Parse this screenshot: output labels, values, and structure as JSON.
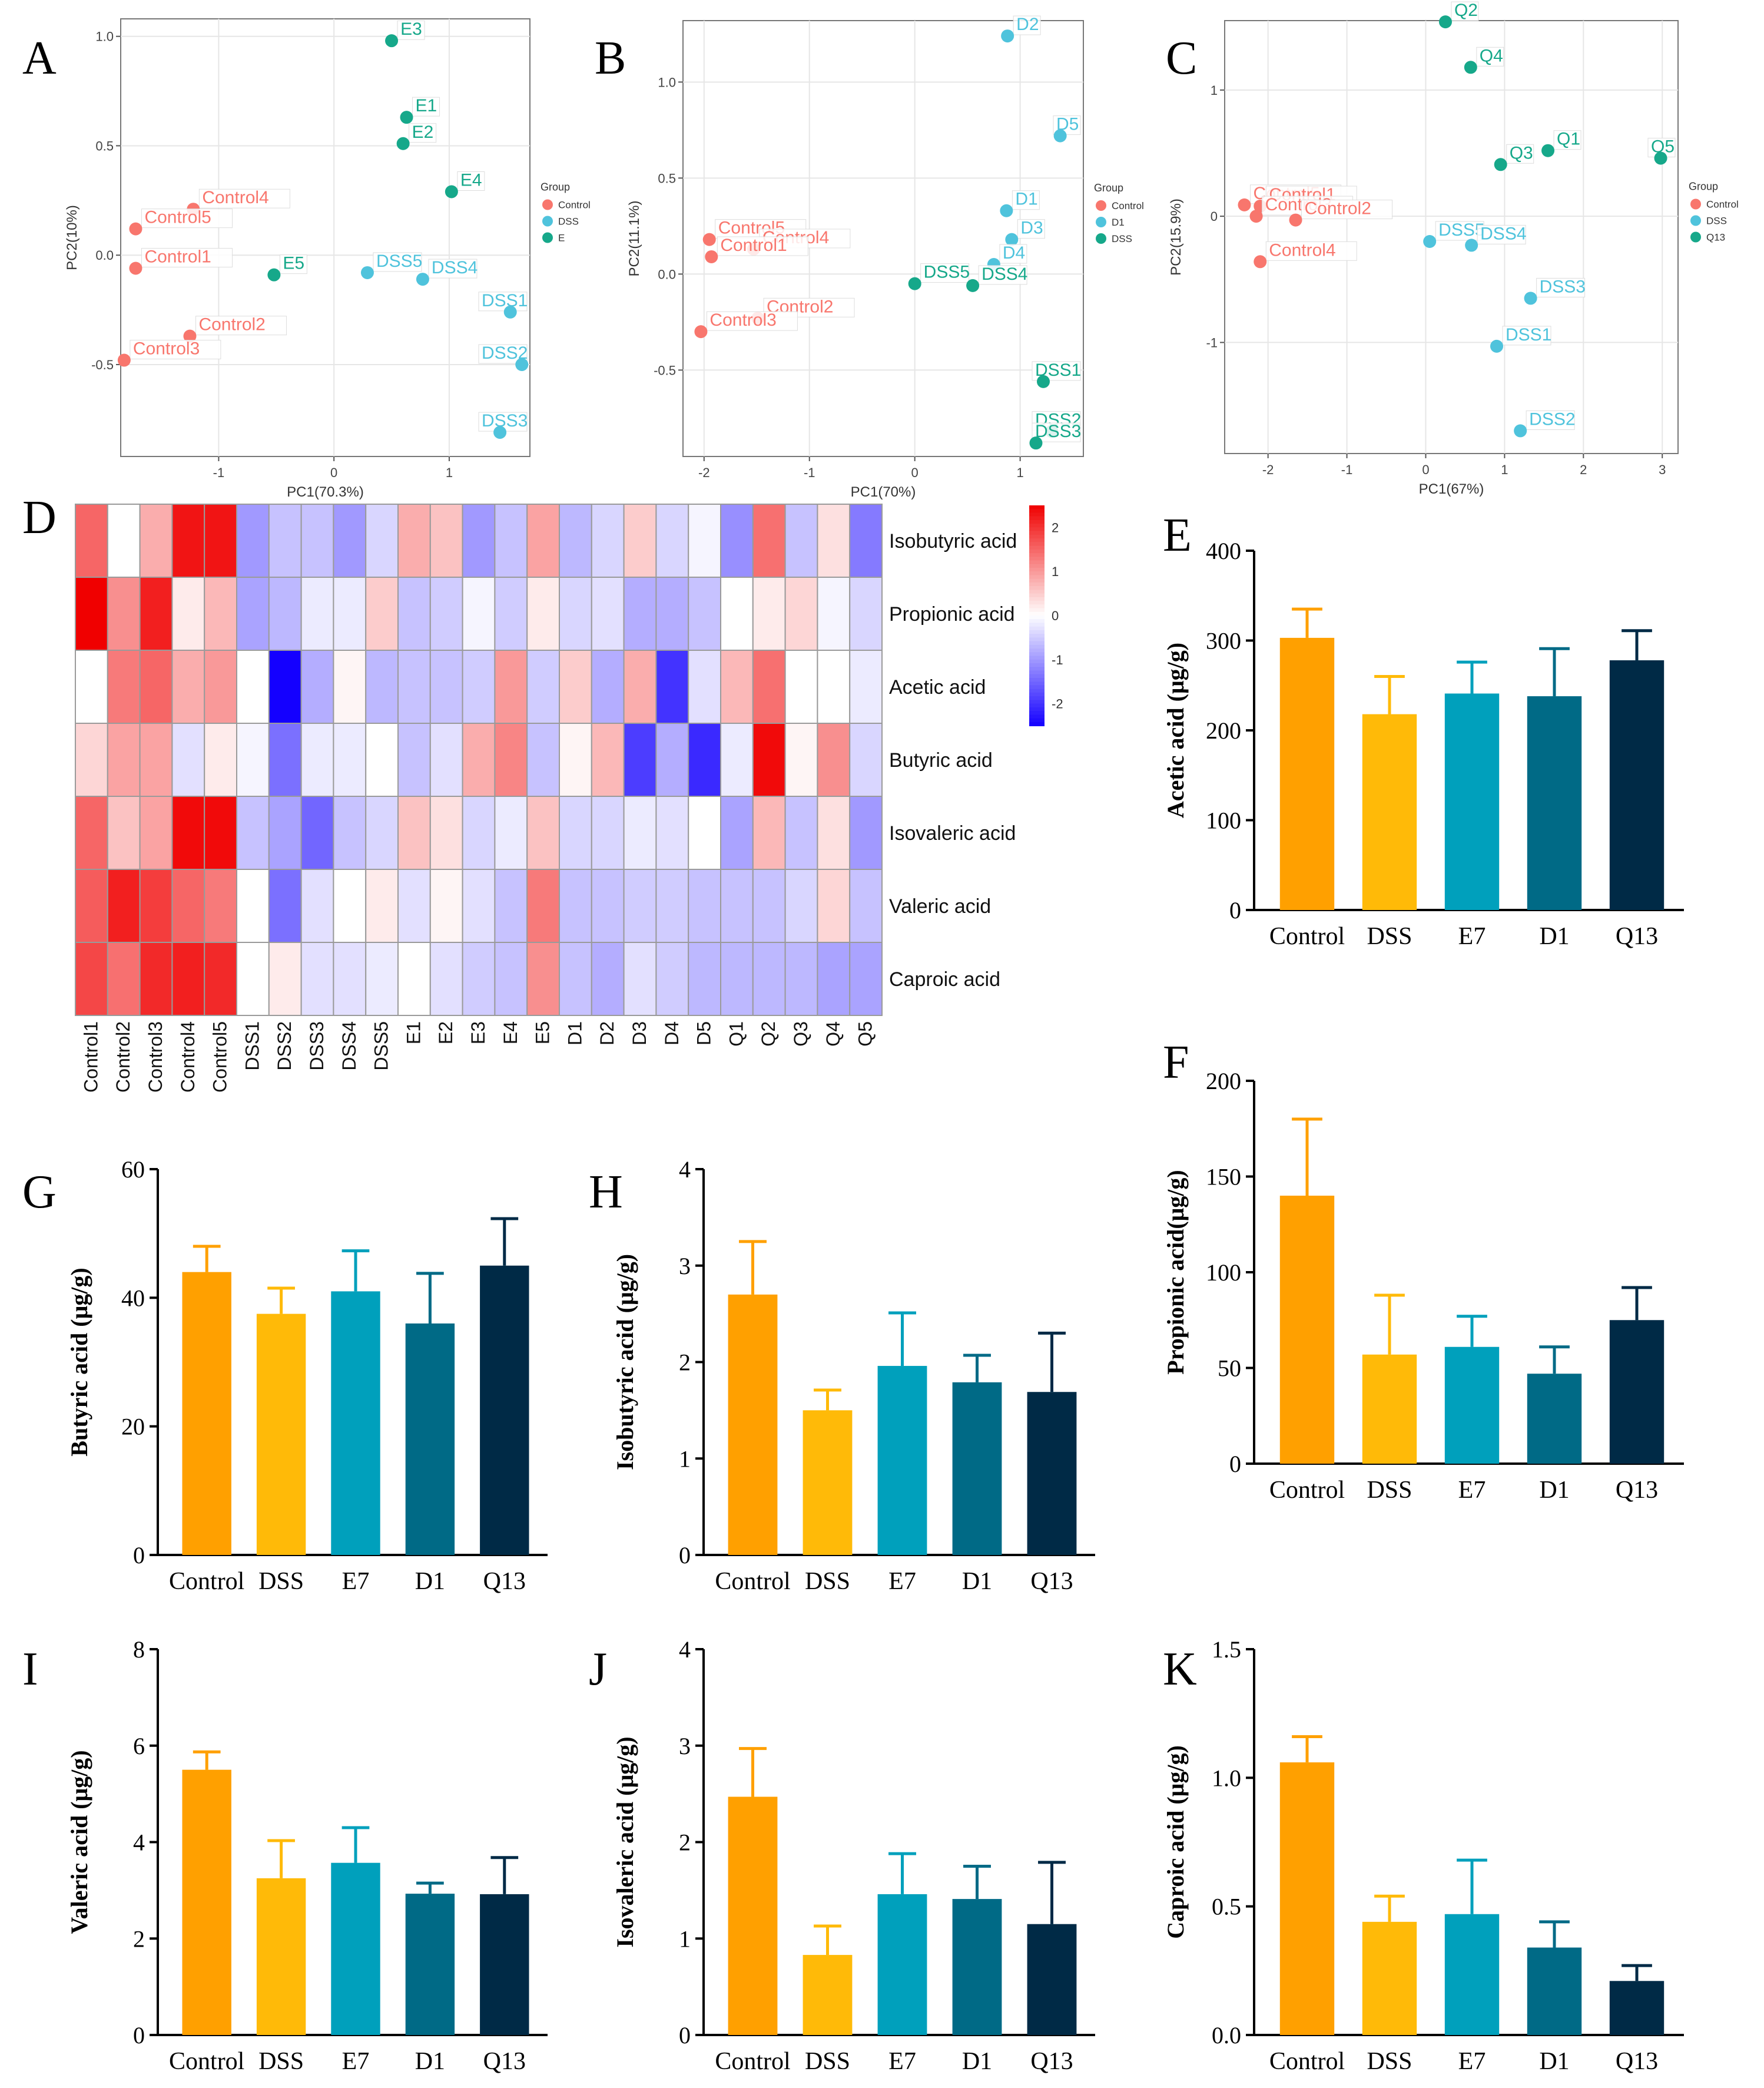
{
  "colors": {
    "control": "#F8766D",
    "dss": "#4FC3DC",
    "treat": "#16A88A",
    "bar_control": "#FFA000",
    "bar_dss": "#FFBA08",
    "bar_e7": "#00A0BC",
    "bar_d1": "#006A86",
    "bar_q13": "#002A46",
    "heat_low": "#1400FF",
    "heat_mid": "#FFFFFF",
    "heat_high": "#F00000"
  },
  "pca_panels": [
    {
      "panel_label": "A",
      "xlabel": "PC1(70.3%)",
      "ylabel": "PC2(10%)",
      "xlim": [
        -1.85,
        1.7
      ],
      "ylim": [
        -0.92,
        1.08
      ],
      "xticks": [
        -1,
        0,
        1
      ],
      "xtick_labels": [
        "-1",
        "0",
        "1"
      ],
      "yticks": [
        -0.5,
        0,
        0.5,
        1.0
      ],
      "ytick_labels": [
        "-0.5",
        "0.0",
        "0.5",
        "1.0"
      ],
      "legend_title": "Group",
      "legend": [
        {
          "label": "Control",
          "group": "control"
        },
        {
          "label": "DSS",
          "group": "dss"
        },
        {
          "label": "E",
          "group": "treat"
        }
      ],
      "points": [
        {
          "label": "Control4",
          "x": -1.22,
          "y": 0.21,
          "group": "control"
        },
        {
          "label": "Control5",
          "x": -1.72,
          "y": 0.12,
          "group": "control"
        },
        {
          "label": "Control1",
          "x": -1.72,
          "y": -0.06,
          "group": "control"
        },
        {
          "label": "Control2",
          "x": -1.25,
          "y": -0.37,
          "group": "control"
        },
        {
          "label": "Control3",
          "x": -1.82,
          "y": -0.48,
          "group": "control"
        },
        {
          "label": "DSS5",
          "x": 0.29,
          "y": -0.08,
          "group": "dss"
        },
        {
          "label": "DSS4",
          "x": 0.77,
          "y": -0.11,
          "group": "dss"
        },
        {
          "label": "DSS1",
          "x": 1.53,
          "y": -0.26,
          "group": "dss"
        },
        {
          "label": "DSS2",
          "x": 1.63,
          "y": -0.5,
          "group": "dss"
        },
        {
          "label": "DSS3",
          "x": 1.44,
          "y": -0.81,
          "group": "dss"
        },
        {
          "label": "E3",
          "x": 0.5,
          "y": 0.98,
          "group": "treat"
        },
        {
          "label": "E1",
          "x": 0.63,
          "y": 0.63,
          "group": "treat"
        },
        {
          "label": "E2",
          "x": 0.6,
          "y": 0.51,
          "group": "treat"
        },
        {
          "label": "E4",
          "x": 1.02,
          "y": 0.29,
          "group": "treat"
        },
        {
          "label": "E5",
          "x": -0.52,
          "y": -0.09,
          "group": "treat"
        }
      ]
    },
    {
      "panel_label": "B",
      "xlabel": "PC1(70%)",
      "ylabel": "PC2(11.1%)",
      "xlim": [
        -2.2,
        1.6
      ],
      "ylim": [
        -0.95,
        1.32
      ],
      "xticks": [
        -2,
        -1,
        0,
        1
      ],
      "xtick_labels": [
        "-2",
        "-1",
        "0",
        "1"
      ],
      "yticks": [
        -0.5,
        0,
        0.5,
        1.0
      ],
      "ytick_labels": [
        "-0.5",
        "0.0",
        "0.5",
        "1.0"
      ],
      "legend_title": "Group",
      "legend": [
        {
          "label": "Control",
          "group": "control"
        },
        {
          "label": "D1",
          "group": "dss"
        },
        {
          "label": "DSS",
          "group": "treat"
        }
      ],
      "points": [
        {
          "label": "Control5",
          "x": -1.95,
          "y": 0.18,
          "group": "control"
        },
        {
          "label": "Control4",
          "x": -1.53,
          "y": 0.13,
          "group": "control"
        },
        {
          "label": "Control1",
          "x": -1.93,
          "y": 0.09,
          "group": "control"
        },
        {
          "label": "Control2",
          "x": -1.49,
          "y": -0.23,
          "group": "control"
        },
        {
          "label": "Control3",
          "x": -2.03,
          "y": -0.3,
          "group": "control"
        },
        {
          "label": "D2",
          "x": 0.88,
          "y": 1.24,
          "group": "dss"
        },
        {
          "label": "D5",
          "x": 1.38,
          "y": 0.72,
          "group": "dss"
        },
        {
          "label": "D1",
          "x": 0.87,
          "y": 0.33,
          "group": "dss"
        },
        {
          "label": "D3",
          "x": 0.92,
          "y": 0.18,
          "group": "dss"
        },
        {
          "label": "D4",
          "x": 0.75,
          "y": 0.05,
          "group": "dss"
        },
        {
          "label": "DSS5",
          "x": 0.0,
          "y": -0.05,
          "group": "treat"
        },
        {
          "label": "DSS4",
          "x": 0.55,
          "y": -0.06,
          "group": "treat"
        },
        {
          "label": "DSS1",
          "x": 1.22,
          "y": -0.56,
          "group": "treat"
        },
        {
          "label": "DSS2",
          "x": 1.3,
          "y": -0.82,
          "group": "treat"
        },
        {
          "label": "DSS3",
          "x": 1.15,
          "y": -0.88,
          "group": "treat"
        }
      ]
    },
    {
      "panel_label": "C",
      "xlabel": "PC1(67%)",
      "ylabel": "PC2(15.9%)",
      "xlim": [
        -2.55,
        3.2
      ],
      "ylim": [
        -1.88,
        1.55
      ],
      "xticks": [
        -2,
        -1,
        0,
        1,
        2,
        3
      ],
      "xtick_labels": [
        "-2",
        "-1",
        "0",
        "1",
        "2",
        "3"
      ],
      "yticks": [
        -1,
        0,
        1
      ],
      "ytick_labels": [
        "-1",
        "0",
        "1"
      ],
      "legend_title": "Group",
      "legend": [
        {
          "label": "Control",
          "group": "control"
        },
        {
          "label": "DSS",
          "group": "dss"
        },
        {
          "label": "Q13",
          "group": "treat"
        }
      ],
      "points": [
        {
          "label": "Control5",
          "x": -2.3,
          "y": 0.09,
          "group": "control"
        },
        {
          "label": "Control1",
          "x": -2.1,
          "y": 0.08,
          "group": "control"
        },
        {
          "label": "Control3",
          "x": -2.15,
          "y": 0.0,
          "group": "control"
        },
        {
          "label": "Control2",
          "x": -1.65,
          "y": -0.03,
          "group": "control"
        },
        {
          "label": "Control4",
          "x": -2.1,
          "y": -0.36,
          "group": "control"
        },
        {
          "label": "DSS5",
          "x": 0.05,
          "y": -0.2,
          "group": "dss"
        },
        {
          "label": "DSS4",
          "x": 0.58,
          "y": -0.23,
          "group": "dss"
        },
        {
          "label": "DSS3",
          "x": 1.33,
          "y": -0.65,
          "group": "dss"
        },
        {
          "label": "DSS1",
          "x": 0.9,
          "y": -1.03,
          "group": "dss"
        },
        {
          "label": "DSS2",
          "x": 1.2,
          "y": -1.7,
          "group": "dss"
        },
        {
          "label": "Q2",
          "x": 0.25,
          "y": 1.54,
          "group": "treat"
        },
        {
          "label": "Q4",
          "x": 0.57,
          "y": 1.18,
          "group": "treat"
        },
        {
          "label": "Q3",
          "x": 0.95,
          "y": 0.41,
          "group": "treat"
        },
        {
          "label": "Q1",
          "x": 1.55,
          "y": 0.52,
          "group": "treat"
        },
        {
          "label": "Q5",
          "x": 2.98,
          "y": 0.46,
          "group": "treat"
        }
      ]
    }
  ],
  "heatmap": {
    "panel_label": "D",
    "columns": [
      "Control1",
      "Control2",
      "Control3",
      "Control4",
      "Control5",
      "DSS1",
      "DSS2",
      "DSS3",
      "DSS4",
      "DSS5",
      "E1",
      "E2",
      "E3",
      "E4",
      "E5",
      "D1",
      "D2",
      "D3",
      "D4",
      "D5",
      "Q1",
      "Q2",
      "Q3",
      "Q4",
      "Q5"
    ],
    "rows": [
      "Isobutyric acid",
      "Propionic acid",
      "Acetic acid",
      "Butyric acid",
      "Isovaleric acid",
      "Valeric acid",
      "Caproic acid"
    ],
    "values": [
      [
        1.5,
        0.0,
        0.8,
        2.3,
        2.3,
        -1.0,
        -0.6,
        -0.6,
        -1.0,
        -0.4,
        0.8,
        0.6,
        -1.0,
        -0.6,
        0.9,
        -0.7,
        -0.4,
        0.5,
        -0.4,
        -0.1,
        -1.1,
        1.4,
        -0.6,
        0.3,
        -1.3
      ],
      [
        2.5,
        1.1,
        2.2,
        0.2,
        0.7,
        -0.9,
        -0.7,
        -0.2,
        -0.2,
        0.5,
        -0.6,
        -0.5,
        -0.1,
        -0.5,
        0.2,
        -0.4,
        -0.3,
        -0.8,
        -0.8,
        -0.6,
        0.0,
        0.2,
        0.4,
        -0.1,
        -0.4
      ],
      [
        0.0,
        1.3,
        1.5,
        0.8,
        1.0,
        0.0,
        -2.5,
        -0.8,
        0.1,
        -0.7,
        -0.6,
        -0.6,
        -0.5,
        1.0,
        -0.5,
        0.5,
        -0.8,
        0.8,
        -2.0,
        -0.3,
        0.7,
        1.4,
        0.0,
        0.0,
        -0.2
      ],
      [
        0.4,
        0.9,
        0.9,
        -0.3,
        0.2,
        -0.1,
        -1.4,
        -0.2,
        -0.2,
        0.0,
        -0.6,
        -0.3,
        0.8,
        1.2,
        -0.6,
        0.1,
        0.7,
        -1.9,
        -0.8,
        -2.1,
        -0.2,
        2.4,
        0.1,
        1.1,
        -0.4
      ],
      [
        1.5,
        0.6,
        0.9,
        2.4,
        2.4,
        -0.6,
        -0.9,
        -1.5,
        -0.6,
        -0.4,
        0.6,
        0.3,
        -0.4,
        -0.2,
        0.6,
        -0.4,
        -0.4,
        -0.2,
        -0.3,
        0.0,
        -0.9,
        0.7,
        -0.6,
        0.3,
        -1.0
      ],
      [
        1.6,
        2.2,
        1.9,
        1.5,
        1.3,
        0.0,
        -1.4,
        -0.3,
        0.0,
        0.2,
        -0.3,
        0.1,
        -0.3,
        -0.6,
        1.3,
        -0.6,
        -0.6,
        -0.5,
        -0.5,
        -0.6,
        -0.6,
        -0.6,
        -0.4,
        0.4,
        -0.6
      ],
      [
        1.8,
        1.4,
        2.1,
        2.2,
        2.1,
        0.0,
        0.2,
        -0.3,
        -0.3,
        -0.2,
        0.0,
        -0.3,
        -0.5,
        -0.6,
        1.1,
        -0.6,
        -0.8,
        -0.3,
        -0.5,
        -0.7,
        -0.7,
        -0.7,
        -0.7,
        -0.9,
        -0.9
      ]
    ],
    "scale_ticks": [
      2,
      1,
      0,
      -1,
      -2
    ],
    "scale_tick_labels": [
      "2",
      "1",
      "0",
      "-1",
      "-2"
    ],
    "scale_range": [
      -2.5,
      2.5
    ]
  },
  "bar_panels": [
    {
      "panel_label": "E",
      "ylabel": "Acetic acid (μg/g)",
      "ylim": [
        0,
        400
      ],
      "ytick_labels": [
        "0",
        "100",
        "200",
        "300",
        "400"
      ],
      "categories": [
        "Control",
        "DSS",
        "E7",
        "D1",
        "Q13"
      ],
      "values": [
        303,
        218,
        241,
        238,
        278
      ],
      "errors": [
        32,
        42,
        35,
        53,
        33
      ]
    },
    {
      "panel_label": "F",
      "ylabel": "Propionic acid(μg/g)",
      "ylim": [
        0,
        200
      ],
      "ytick_labels": [
        "0",
        "50",
        "100",
        "150",
        "200"
      ],
      "categories": [
        "Control",
        "DSS",
        "E7",
        "D1",
        "Q13"
      ],
      "values": [
        140,
        57,
        61,
        47,
        75
      ],
      "errors": [
        40,
        31,
        16,
        14,
        17
      ]
    },
    {
      "panel_label": "G",
      "ylabel": "Butyric acid (μg/g)",
      "ylim": [
        0,
        60
      ],
      "ytick_labels": [
        "0",
        "20",
        "40",
        "60"
      ],
      "categories": [
        "Control",
        "DSS",
        "E7",
        "D1",
        "Q13"
      ],
      "values": [
        44,
        37.5,
        41,
        36,
        45
      ],
      "errors": [
        4,
        4,
        6.3,
        7.8,
        7.3
      ]
    },
    {
      "panel_label": "H",
      "ylabel": "Isobutyric acid (μg/g)",
      "ylim": [
        0,
        4
      ],
      "ytick_labels": [
        "0",
        "1",
        "2",
        "3",
        "4"
      ],
      "categories": [
        "Control",
        "DSS",
        "E7",
        "D1",
        "Q13"
      ],
      "values": [
        2.7,
        1.5,
        1.96,
        1.79,
        1.69
      ],
      "errors": [
        0.55,
        0.21,
        0.55,
        0.28,
        0.61
      ]
    },
    {
      "panel_label": "I",
      "ylabel": "Valeric acid (μg/g)",
      "ylim": [
        0,
        8
      ],
      "ytick_labels": [
        "0",
        "2",
        "4",
        "6",
        "8"
      ],
      "categories": [
        "Control",
        "DSS",
        "E7",
        "D1",
        "Q13"
      ],
      "values": [
        5.5,
        3.25,
        3.57,
        2.93,
        2.92
      ],
      "errors": [
        0.37,
        0.78,
        0.73,
        0.22,
        0.76
      ]
    },
    {
      "panel_label": "J",
      "ylabel": "Isovaleric acid (μg/g)",
      "ylim": [
        0,
        4
      ],
      "ytick_labels": [
        "0",
        "1",
        "2",
        "3",
        "4"
      ],
      "categories": [
        "Control",
        "DSS",
        "E7",
        "D1",
        "Q13"
      ],
      "values": [
        2.47,
        0.83,
        1.46,
        1.41,
        1.15
      ],
      "errors": [
        0.5,
        0.3,
        0.42,
        0.34,
        0.64
      ]
    },
    {
      "panel_label": "K",
      "ylabel": "Caproic acid (μg/g)",
      "ylim": [
        0,
        1.5
      ],
      "ytick_labels": [
        "0.0",
        "0.5",
        "1.0",
        "1.5"
      ],
      "categories": [
        "Control",
        "DSS",
        "E7",
        "D1",
        "Q13"
      ],
      "values": [
        1.06,
        0.44,
        0.47,
        0.34,
        0.21
      ],
      "errors": [
        0.1,
        0.1,
        0.21,
        0.1,
        0.06
      ]
    }
  ],
  "chart_data": [
    {
      "type": "scatter",
      "title": "A",
      "xlabel": "PC1(70.3%)",
      "ylabel": "PC2(10%)",
      "series": [
        {
          "name": "Control"
        },
        {
          "name": "DSS"
        },
        {
          "name": "E"
        }
      ]
    },
    {
      "type": "scatter",
      "title": "B",
      "xlabel": "PC1(70%)",
      "ylabel": "PC2(11.1%)",
      "series": [
        {
          "name": "Control"
        },
        {
          "name": "D1"
        },
        {
          "name": "DSS"
        }
      ]
    },
    {
      "type": "scatter",
      "title": "C",
      "xlabel": "PC1(67%)",
      "ylabel": "PC2(15.9%)",
      "series": [
        {
          "name": "Control"
        },
        {
          "name": "DSS"
        },
        {
          "name": "Q13"
        }
      ]
    },
    {
      "type": "heatmap",
      "title": "D",
      "note": "values in heatmap key"
    },
    {
      "type": "bar",
      "title": "E",
      "categories": [
        "Control",
        "DSS",
        "E7",
        "D1",
        "Q13"
      ],
      "values": [
        303,
        218,
        241,
        238,
        278
      ],
      "ylabel": "Acetic acid (μg/g)",
      "ylim": [
        0,
        400
      ]
    },
    {
      "type": "bar",
      "title": "F",
      "categories": [
        "Control",
        "DSS",
        "E7",
        "D1",
        "Q13"
      ],
      "values": [
        140,
        57,
        61,
        47,
        75
      ],
      "ylabel": "Propionic acid(μg/g)",
      "ylim": [
        0,
        200
      ]
    },
    {
      "type": "bar",
      "title": "G",
      "categories": [
        "Control",
        "DSS",
        "E7",
        "D1",
        "Q13"
      ],
      "values": [
        44,
        37.5,
        41,
        36,
        45
      ],
      "ylabel": "Butyric acid (μg/g)",
      "ylim": [
        0,
        60
      ]
    },
    {
      "type": "bar",
      "title": "H",
      "categories": [
        "Control",
        "DSS",
        "E7",
        "D1",
        "Q13"
      ],
      "values": [
        2.7,
        1.5,
        1.96,
        1.79,
        1.69
      ],
      "ylabel": "Isobutyric acid (μg/g)",
      "ylim": [
        0,
        4
      ]
    },
    {
      "type": "bar",
      "title": "I",
      "categories": [
        "Control",
        "DSS",
        "E7",
        "D1",
        "Q13"
      ],
      "values": [
        5.5,
        3.25,
        3.57,
        2.93,
        2.92
      ],
      "ylabel": "Valeric acid (μg/g)",
      "ylim": [
        0,
        8
      ]
    },
    {
      "type": "bar",
      "title": "J",
      "categories": [
        "Control",
        "DSS",
        "E7",
        "D1",
        "Q13"
      ],
      "values": [
        2.47,
        0.83,
        1.46,
        1.41,
        1.15
      ],
      "ylabel": "Isovaleric acid (μg/g)",
      "ylim": [
        0,
        4
      ]
    },
    {
      "type": "bar",
      "title": "K",
      "categories": [
        "Control",
        "DSS",
        "E7",
        "D1",
        "Q13"
      ],
      "values": [
        1.06,
        0.44,
        0.47,
        0.34,
        0.21
      ],
      "ylabel": "Caproic acid (μg/g)",
      "ylim": [
        0,
        1.5
      ]
    }
  ]
}
